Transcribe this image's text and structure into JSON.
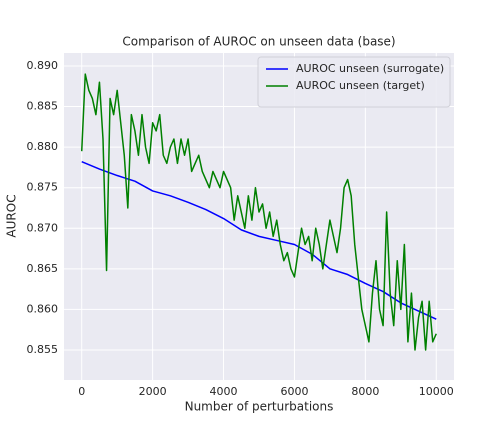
{
  "chart_data": {
    "type": "line",
    "title": "Comparison of AUROC on unseen data (base)",
    "xlabel": "Number of perturbations",
    "ylabel": "AUROC",
    "xlim": [
      -500,
      10500
    ],
    "ylim": [
      0.8513,
      0.8916
    ],
    "xticks": [
      0,
      2000,
      4000,
      6000,
      8000,
      10000
    ],
    "yticks": [
      {
        "value": 0.855,
        "label": "0.855"
      },
      {
        "value": 0.86,
        "label": "0.860"
      },
      {
        "value": 0.865,
        "label": "0.865"
      },
      {
        "value": 0.87,
        "label": "0.870"
      },
      {
        "value": 0.875,
        "label": "0.875"
      },
      {
        "value": 0.88,
        "label": "0.880"
      },
      {
        "value": 0.885,
        "label": "0.885"
      },
      {
        "value": 0.89,
        "label": "0.890"
      }
    ],
    "grid": true,
    "legend": "upper right",
    "series": [
      {
        "name": "AUROC unseen (surrogate)",
        "color": "#0000ff",
        "x": [
          0,
          500,
          1000,
          1500,
          2000,
          2500,
          3000,
          3500,
          4000,
          4500,
          5000,
          5500,
          6000,
          6500,
          7000,
          7500,
          8000,
          8500,
          9000,
          9500,
          10000
        ],
        "values": [
          0.8782,
          0.8773,
          0.8765,
          0.8758,
          0.8746,
          0.874,
          0.8732,
          0.8723,
          0.8712,
          0.8698,
          0.869,
          0.8685,
          0.868,
          0.8668,
          0.865,
          0.8643,
          0.8632,
          0.8622,
          0.8608,
          0.8598,
          0.8588
        ]
      },
      {
        "name": "AUROC unseen (target)",
        "color": "#008000",
        "x": [
          0,
          100,
          200,
          300,
          400,
          500,
          600,
          700,
          800,
          900,
          1000,
          1100,
          1200,
          1300,
          1400,
          1500,
          1600,
          1700,
          1800,
          1900,
          2000,
          2100,
          2200,
          2300,
          2400,
          2500,
          2600,
          2700,
          2800,
          2900,
          3000,
          3100,
          3200,
          3300,
          3400,
          3500,
          3600,
          3700,
          3800,
          3900,
          4000,
          4100,
          4200,
          4300,
          4400,
          4500,
          4600,
          4700,
          4800,
          4900,
          5000,
          5100,
          5200,
          5300,
          5400,
          5500,
          5600,
          5700,
          5800,
          5900,
          6000,
          6100,
          6200,
          6300,
          6400,
          6500,
          6600,
          6700,
          6800,
          6900,
          7000,
          7100,
          7200,
          7300,
          7400,
          7500,
          7600,
          7700,
          7800,
          7900,
          8000,
          8100,
          8200,
          8300,
          8400,
          8500,
          8600,
          8700,
          8800,
          8900,
          9000,
          9100,
          9200,
          9300,
          9400,
          9500,
          9600,
          9700,
          9800,
          9900,
          10000
        ],
        "values": [
          0.8795,
          0.889,
          0.887,
          0.886,
          0.884,
          0.888,
          0.881,
          0.8648,
          0.886,
          0.884,
          0.887,
          0.883,
          0.879,
          0.8725,
          0.884,
          0.882,
          0.879,
          0.884,
          0.88,
          0.878,
          0.883,
          0.882,
          0.884,
          0.879,
          0.878,
          0.88,
          0.881,
          0.878,
          0.881,
          0.879,
          0.881,
          0.877,
          0.878,
          0.879,
          0.877,
          0.876,
          0.875,
          0.877,
          0.876,
          0.875,
          0.877,
          0.876,
          0.875,
          0.871,
          0.874,
          0.872,
          0.87,
          0.874,
          0.871,
          0.875,
          0.872,
          0.873,
          0.87,
          0.872,
          0.869,
          0.871,
          0.868,
          0.866,
          0.867,
          0.865,
          0.864,
          0.867,
          0.87,
          0.868,
          0.869,
          0.866,
          0.87,
          0.868,
          0.865,
          0.868,
          0.871,
          0.869,
          0.867,
          0.87,
          0.875,
          0.876,
          0.874,
          0.868,
          0.864,
          0.86,
          0.858,
          0.856,
          0.862,
          0.866,
          0.86,
          0.858,
          0.872,
          0.862,
          0.858,
          0.866,
          0.86,
          0.868,
          0.856,
          0.862,
          0.855,
          0.859,
          0.861,
          0.855,
          0.861,
          0.856,
          0.857
        ]
      }
    ]
  }
}
